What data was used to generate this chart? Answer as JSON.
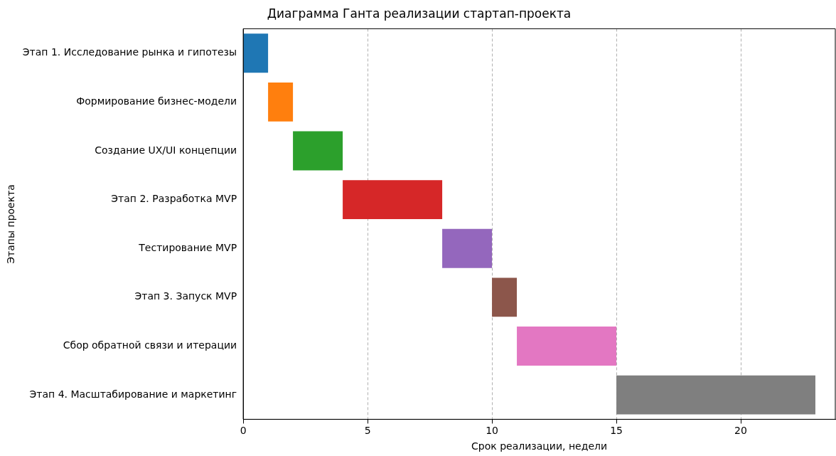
{
  "chart_data": {
    "type": "bar",
    "orientation": "horizontal",
    "title": "Диаграмма Ганта реализации стартап-проекта",
    "xlabel": "Срок реализации, недели",
    "ylabel": "Этапы проекта",
    "categories": [
      "Этап 1. Исследование рынка и гипотезы",
      "Формирование бизнес-модели",
      "Создание UX/UI концепции",
      "Этап 2. Разработка MVP",
      "Тестирование MVP",
      "Этап 3. Запуск MVP",
      "Сбор обратной связи и итерации",
      "Этап 4. Масштабирование и маркетинг"
    ],
    "base": [
      0,
      1,
      2,
      4,
      8,
      10,
      11,
      15
    ],
    "values": [
      1,
      1,
      2,
      4,
      2,
      1,
      4,
      8
    ],
    "colors": [
      "#1f77b4",
      "#ff7f0e",
      "#2ca02c",
      "#d62728",
      "#9467bd",
      "#8c564b",
      "#e377c2",
      "#7f7f7f"
    ],
    "xlim": [
      0,
      23.8
    ],
    "xticks": [
      0,
      5,
      10,
      15,
      20
    ],
    "grid": "x"
  }
}
